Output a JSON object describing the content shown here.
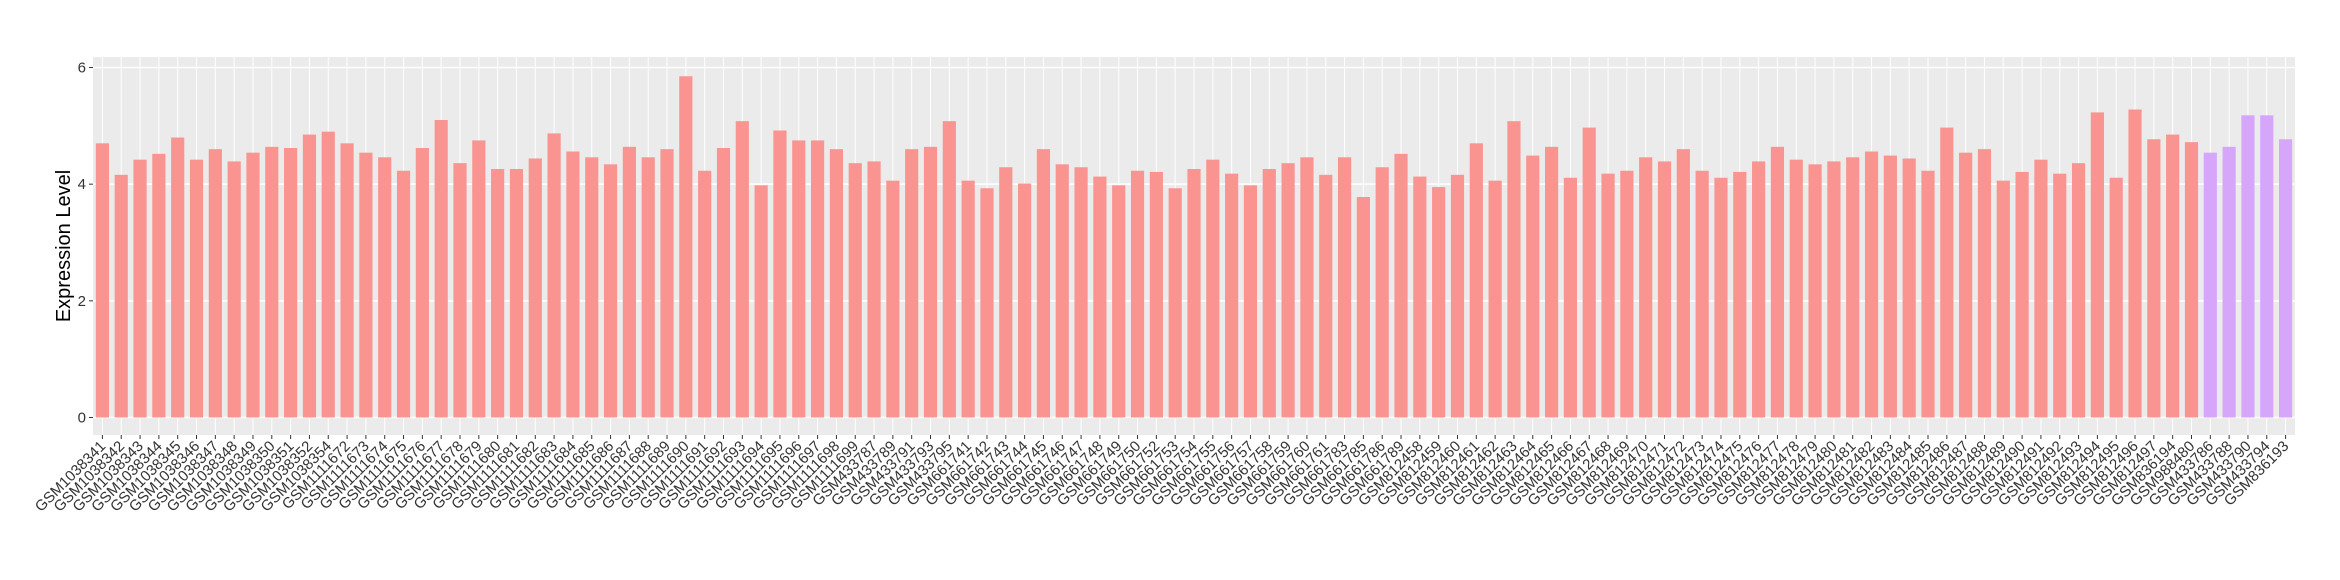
{
  "chart_data": {
    "type": "bar",
    "y_label": "Expression Level",
    "categories": [
      "GSM1038341",
      "GSM1038342",
      "GSM1038343",
      "GSM1038344",
      "GSM1038345",
      "GSM1038346",
      "GSM1038347",
      "GSM1038348",
      "GSM1038349",
      "GSM1038350",
      "GSM1038351",
      "GSM1038352",
      "GSM1038354",
      "GSM1111672",
      "GSM1111673",
      "GSM1111674",
      "GSM1111675",
      "GSM1111676",
      "GSM1111677",
      "GSM1111678",
      "GSM1111679",
      "GSM1111680",
      "GSM1111681",
      "GSM1111682",
      "GSM1111683",
      "GSM1111684",
      "GSM1111685",
      "GSM1111686",
      "GSM1111687",
      "GSM1111688",
      "GSM1111689",
      "GSM1111690",
      "GSM1111691",
      "GSM1111692",
      "GSM1111693",
      "GSM1111694",
      "GSM1111695",
      "GSM1111696",
      "GSM1111697",
      "GSM1111698",
      "GSM1111699",
      "GSM433787",
      "GSM433789",
      "GSM433791",
      "GSM433793",
      "GSM433795",
      "GSM661741",
      "GSM661742",
      "GSM661743",
      "GSM661744",
      "GSM661745",
      "GSM661746",
      "GSM661747",
      "GSM661748",
      "GSM661749",
      "GSM661750",
      "GSM661752",
      "GSM661753",
      "GSM661754",
      "GSM661755",
      "GSM661756",
      "GSM661757",
      "GSM661758",
      "GSM661759",
      "GSM661760",
      "GSM661761",
      "GSM661783",
      "GSM661785",
      "GSM661786",
      "GSM661789",
      "GSM812458",
      "GSM812459",
      "GSM812460",
      "GSM812461",
      "GSM812462",
      "GSM812463",
      "GSM812464",
      "GSM812465",
      "GSM812466",
      "GSM812467",
      "GSM812468",
      "GSM812469",
      "GSM812470",
      "GSM812471",
      "GSM812472",
      "GSM812473",
      "GSM812474",
      "GSM812475",
      "GSM812476",
      "GSM812477",
      "GSM812478",
      "GSM812479",
      "GSM812480",
      "GSM812481",
      "GSM812482",
      "GSM812483",
      "GSM812484",
      "GSM812485",
      "GSM812486",
      "GSM812487",
      "GSM812488",
      "GSM812489",
      "GSM812490",
      "GSM812491",
      "GSM812492",
      "GSM812493",
      "GSM812494",
      "GSM812495",
      "GSM812496",
      "GSM812497",
      "GSM836194",
      "GSM988480",
      "GSM433786",
      "GSM433788",
      "GSM433790",
      "GSM433794",
      "GSM836193"
    ],
    "values": [
      4.7,
      4.16,
      4.42,
      4.52,
      4.8,
      4.42,
      4.6,
      4.39,
      4.54,
      4.64,
      4.62,
      4.85,
      4.9,
      4.7,
      4.54,
      4.46,
      4.23,
      4.62,
      5.1,
      4.36,
      4.75,
      4.26,
      4.26,
      4.44,
      4.87,
      4.56,
      4.46,
      4.34,
      4.64,
      4.46,
      4.6,
      5.85,
      4.23,
      4.62,
      5.08,
      3.98,
      4.92,
      4.75,
      4.75,
      4.6,
      4.36,
      4.39,
      4.06,
      4.6,
      4.64,
      5.08,
      4.06,
      3.93,
      4.29,
      4.01,
      4.6,
      4.34,
      4.29,
      4.13,
      3.98,
      4.23,
      4.21,
      3.93,
      4.26,
      4.42,
      4.18,
      3.98,
      4.26,
      4.36,
      4.46,
      4.16,
      4.46,
      3.78,
      4.29,
      4.52,
      4.13,
      3.95,
      4.16,
      4.7,
      4.06,
      5.08,
      4.49,
      4.64,
      4.11,
      4.97,
      4.18,
      4.23,
      4.46,
      4.39,
      4.6,
      4.23,
      4.11,
      4.21,
      4.39,
      4.64,
      4.42,
      4.34,
      4.39,
      4.46,
      4.56,
      4.49,
      4.44,
      4.23,
      4.97,
      4.54,
      4.6,
      4.06,
      4.21,
      4.42,
      4.18,
      4.36,
      5.23,
      4.11,
      5.28,
      4.77,
      4.85,
      4.72,
      4.54,
      4.64,
      5.18,
      5.18,
      4.77
    ],
    "colors": [
      "#f99490",
      "#f99490",
      "#f99490",
      "#f99490",
      "#f99490",
      "#f99490",
      "#f99490",
      "#f99490",
      "#f99490",
      "#f99490",
      "#f99490",
      "#f99490",
      "#f99490",
      "#f99490",
      "#f99490",
      "#f99490",
      "#f99490",
      "#f99490",
      "#f99490",
      "#f99490",
      "#f99490",
      "#f99490",
      "#f99490",
      "#f99490",
      "#f99490",
      "#f99490",
      "#f99490",
      "#f99490",
      "#f99490",
      "#f99490",
      "#f99490",
      "#f99490",
      "#f99490",
      "#f99490",
      "#f99490",
      "#f99490",
      "#f99490",
      "#f99490",
      "#f99490",
      "#f99490",
      "#f99490",
      "#f99490",
      "#f99490",
      "#f99490",
      "#f99490",
      "#f99490",
      "#f99490",
      "#f99490",
      "#f99490",
      "#f99490",
      "#f99490",
      "#f99490",
      "#f99490",
      "#f99490",
      "#f99490",
      "#f99490",
      "#f99490",
      "#f99490",
      "#f99490",
      "#f99490",
      "#f99490",
      "#f99490",
      "#f99490",
      "#f99490",
      "#f99490",
      "#f99490",
      "#f99490",
      "#f99490",
      "#f99490",
      "#f99490",
      "#f99490",
      "#f99490",
      "#f99490",
      "#f99490",
      "#f99490",
      "#f99490",
      "#f99490",
      "#f99490",
      "#f99490",
      "#f99490",
      "#f99490",
      "#f99490",
      "#f99490",
      "#f99490",
      "#f99490",
      "#f99490",
      "#f99490",
      "#f99490",
      "#f99490",
      "#f99490",
      "#f99490",
      "#f99490",
      "#f99490",
      "#f99490",
      "#f99490",
      "#f99490",
      "#f99490",
      "#f99490",
      "#f99490",
      "#f99490",
      "#f99490",
      "#f99490",
      "#f99490",
      "#f99490",
      "#f99490",
      "#f99490",
      "#f99490",
      "#f99490",
      "#f99490",
      "#f99490",
      "#f99490",
      "#f99490",
      "#d6a6fa",
      "#d6a6fa",
      "#d6a6fa",
      "#d6a6fa",
      "#d6a6fa"
    ],
    "ylim": [
      -0.3,
      6.18
    ],
    "yticks": [
      0,
      2,
      4,
      6
    ],
    "grid": true
  }
}
